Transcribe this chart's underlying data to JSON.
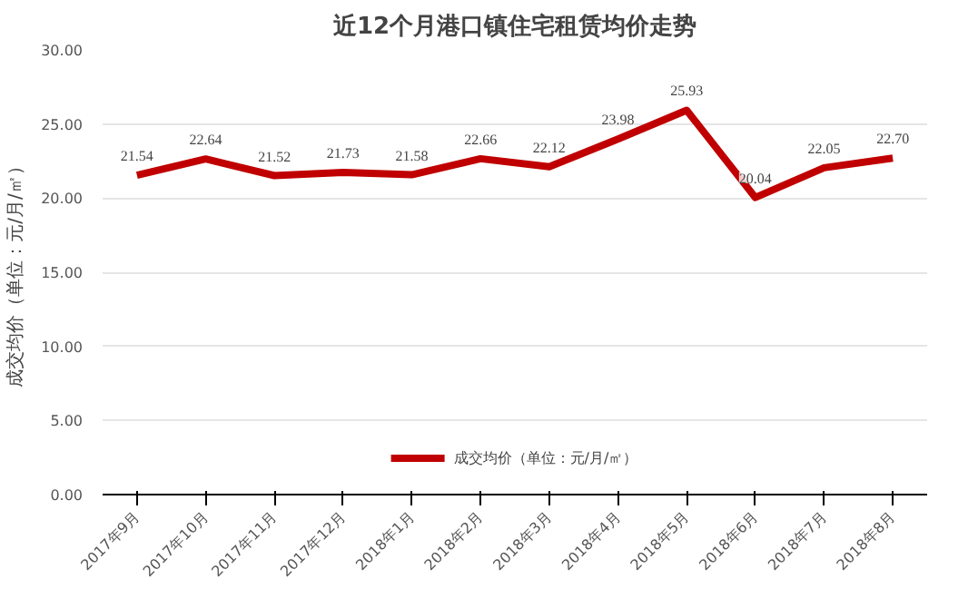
{
  "chart_data": {
    "type": "line",
    "title": "近12个月港口镇住宅租赁均价走势",
    "ylabel": "成交均价（单位：元/月/㎡）",
    "categories": [
      "2017年9月",
      "2017年10月",
      "2017年11月",
      "2017年12月",
      "2018年1月",
      "2018年2月",
      "2018年3月",
      "2018年4月",
      "2018年5月",
      "2018年6月",
      "2018年7月",
      "2018年8月"
    ],
    "series": [
      {
        "name": "成交均价（单位：元/月/㎡）",
        "color": "#c00000",
        "values": [
          21.54,
          22.64,
          21.52,
          21.73,
          21.58,
          22.66,
          22.12,
          23.98,
          25.93,
          20.04,
          22.05,
          22.7
        ],
        "value_labels": [
          "21.54",
          "22.64",
          "21.52",
          "21.73",
          "21.58",
          "22.66",
          "22.12",
          "23.98",
          "25.93",
          "20.04",
          "22.05",
          "22.70"
        ]
      }
    ],
    "ylim": [
      0,
      30
    ],
    "yticks": [
      {
        "value": 0,
        "label": "0.00"
      },
      {
        "value": 5,
        "label": "5.00"
      },
      {
        "value": 10,
        "label": "10.00"
      },
      {
        "value": 15,
        "label": "15.00"
      },
      {
        "value": 20,
        "label": "20.00"
      },
      {
        "value": 25,
        "label": "25.00"
      },
      {
        "value": 30,
        "label": "30.00"
      }
    ],
    "grid": "y",
    "legend": "bottom",
    "marker": "none",
    "line_style": "solid"
  }
}
